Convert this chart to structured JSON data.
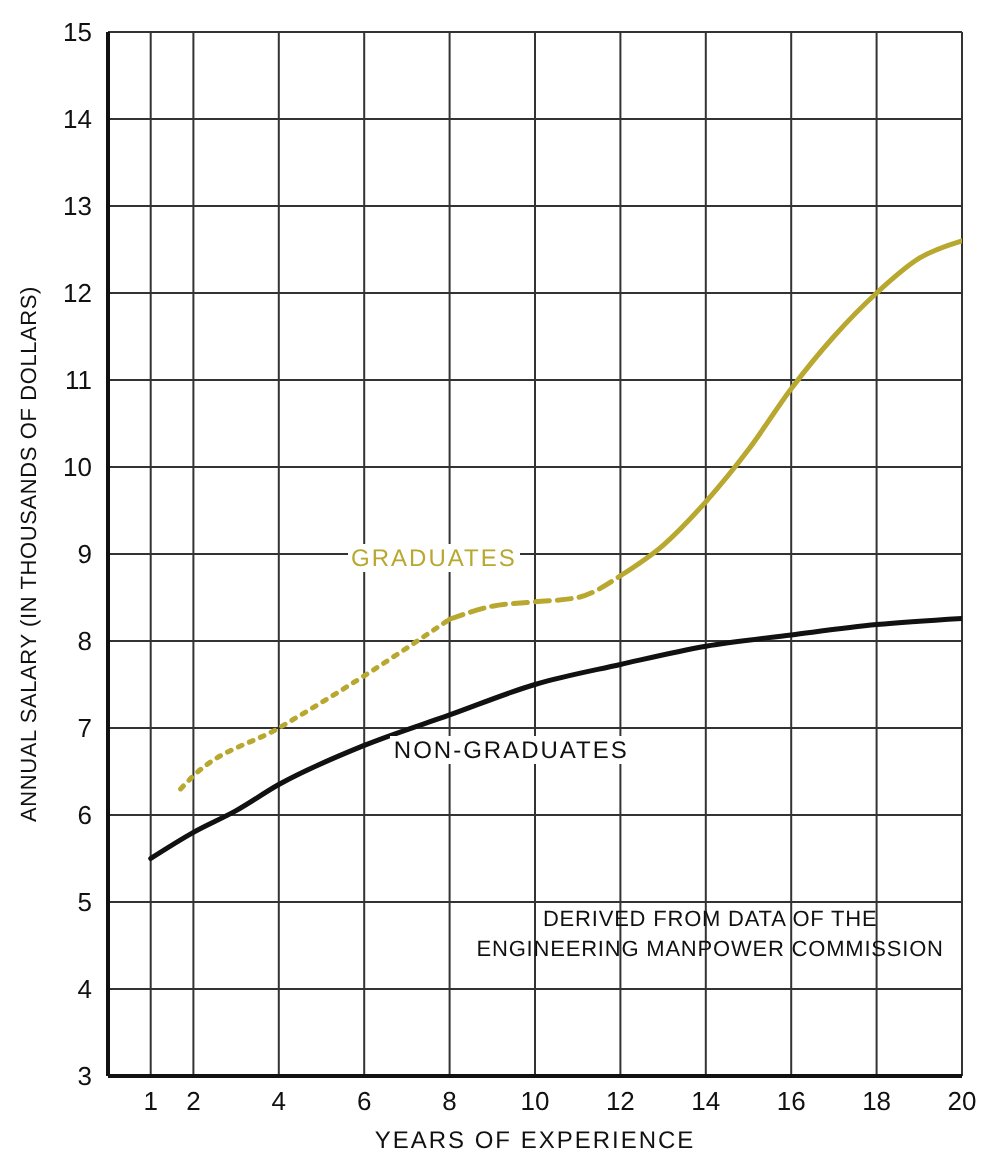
{
  "chart_data": {
    "type": "line",
    "xlabel": "YEARS OF EXPERIENCE",
    "ylabel": "ANNUAL SALARY (IN THOUSANDS OF DOLLARS)",
    "xlim": [
      0,
      20
    ],
    "xticks": [
      1,
      2,
      4,
      6,
      8,
      10,
      12,
      14,
      16,
      18,
      20
    ],
    "ylim": [
      3,
      15
    ],
    "yticks": [
      3,
      4,
      5,
      6,
      7,
      8,
      9,
      10,
      11,
      12,
      13,
      14,
      15
    ],
    "grid": true,
    "legend": false,
    "marker": "none",
    "annotations": [
      "DERIVED FROM DATA OF THE ENGINEERING MANPOWER COMMISSION"
    ],
    "series": [
      {
        "name": "NON-GRADUATES",
        "color": "#111111",
        "line_style": "solid",
        "x": [
          1,
          2,
          3,
          4,
          6,
          8,
          10,
          12,
          14,
          16,
          18,
          20
        ],
        "values": [
          5.5,
          5.8,
          6.05,
          6.35,
          6.8,
          7.15,
          7.5,
          7.73,
          7.94,
          8.07,
          8.19,
          8.26
        ]
      },
      {
        "color": "#b8a830",
        "line_style": "dotted",
        "x": [
          1.7,
          2,
          4,
          6,
          8
        ],
        "values": [
          6.3,
          6.45,
          7.0,
          7.6,
          8.25
        ]
      },
      {
        "name": "GRADUATES",
        "color": "#b8a830",
        "line_style": "dashed",
        "x": [
          8,
          9,
          10,
          11,
          12
        ],
        "values": [
          8.25,
          8.4,
          8.45,
          8.5,
          8.75
        ]
      },
      {
        "color": "#b8a830",
        "line_style": "solid",
        "x": [
          12,
          13,
          14,
          15,
          16,
          17,
          18,
          19,
          20
        ],
        "values": [
          8.75,
          9.1,
          9.6,
          10.2,
          10.9,
          11.5,
          12.0,
          12.4,
          12.6
        ]
      }
    ]
  }
}
